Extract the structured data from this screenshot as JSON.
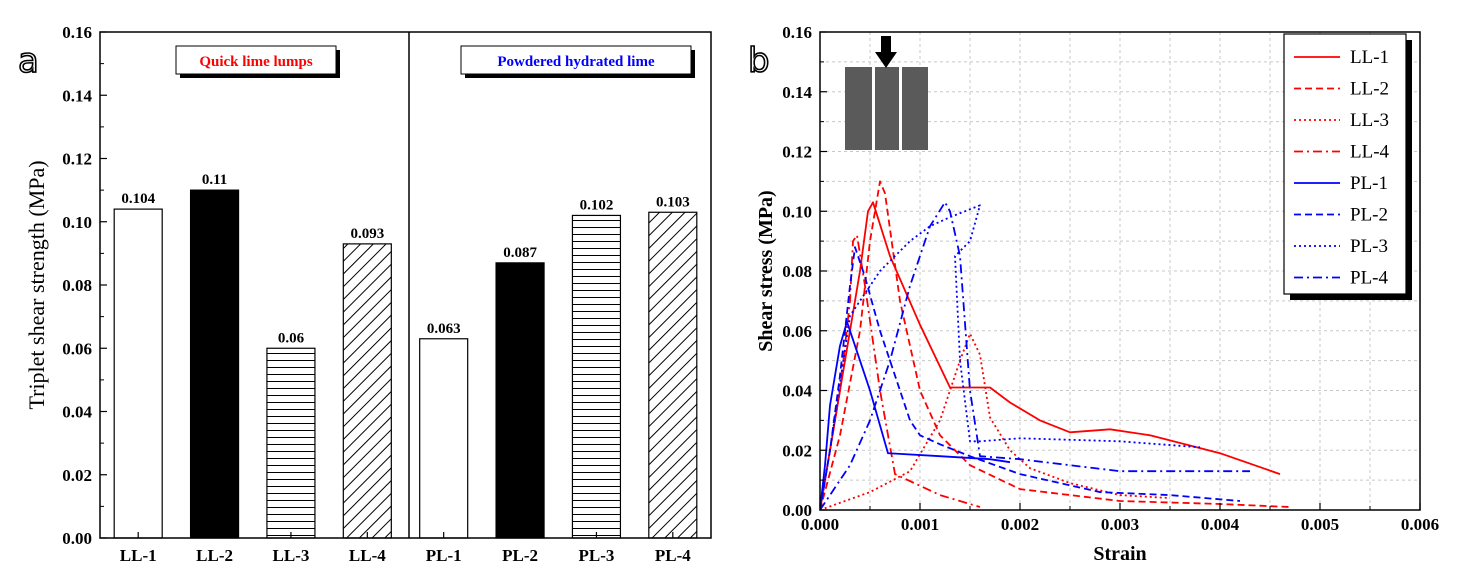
{
  "colors": {
    "red": "#ff0000",
    "blue": "#0000ff",
    "black": "#000000",
    "specimen": "#5a5a5a"
  },
  "chart_data": [
    {
      "panel": "a",
      "type": "bar",
      "ylabel": "Triplet shear strength (MPa)",
      "xlabel": "",
      "ylim": [
        0,
        0.16
      ],
      "yticks": [
        0.0,
        0.02,
        0.04,
        0.06,
        0.08,
        0.1,
        0.12,
        0.14,
        0.16
      ],
      "ytick_labels": [
        "0.00",
        "0.02",
        "0.04",
        "0.06",
        "0.08",
        "0.10",
        "0.12",
        "0.14",
        "0.16"
      ],
      "categories": [
        "LL-1",
        "LL-2",
        "LL-3",
        "LL-4",
        "PL-1",
        "PL-2",
        "PL-3",
        "PL-4"
      ],
      "values": [
        0.104,
        0.11,
        0.06,
        0.093,
        0.063,
        0.087,
        0.102,
        0.103
      ],
      "value_labels": [
        "0.104",
        "0.11",
        "0.06",
        "0.093",
        "0.063",
        "0.087",
        "0.102",
        "0.103"
      ],
      "fills": [
        "white",
        "black",
        "horizontal",
        "diagonal",
        "white",
        "black",
        "horizontal",
        "diagonal"
      ],
      "groups": [
        {
          "label": "Quick lime lumps",
          "color": "#ff0000"
        },
        {
          "label": "Powdered hydrated lime",
          "color": "#0000ff"
        }
      ],
      "grid": false
    },
    {
      "panel": "b",
      "type": "line",
      "xlabel": "Strain",
      "ylabel": "Shear stress (MPa)",
      "xlim": [
        0,
        0.006
      ],
      "ylim": [
        0,
        0.16
      ],
      "xticks": [
        0,
        0.001,
        0.002,
        0.003,
        0.004,
        0.005,
        0.006
      ],
      "xtick_labels": [
        "0.000",
        "0.001",
        "0.002",
        "0.003",
        "0.004",
        "0.005",
        "0.006"
      ],
      "yticks": [
        0.0,
        0.02,
        0.04,
        0.06,
        0.08,
        0.1,
        0.12,
        0.14,
        0.16
      ],
      "ytick_labels": [
        "0.00",
        "0.02",
        "0.04",
        "0.06",
        "0.08",
        "0.10",
        "0.12",
        "0.14",
        "0.16"
      ],
      "grid": true,
      "legend_position": "top-right",
      "series": [
        {
          "name": "LL-1",
          "color": "#ff0000",
          "dash": "solid",
          "x": [
            0,
            0.0001,
            0.0002,
            0.0003,
            0.0004,
            0.00048,
            0.00053,
            0.0007,
            0.001,
            0.0013,
            0.0017,
            0.0019,
            0.0022,
            0.0025,
            0.0029,
            0.0033,
            0.004,
            0.0046
          ],
          "y": [
            0,
            0.02,
            0.04,
            0.06,
            0.08,
            0.1,
            0.103,
            0.085,
            0.062,
            0.041,
            0.041,
            0.036,
            0.03,
            0.026,
            0.027,
            0.025,
            0.019,
            0.012
          ]
        },
        {
          "name": "LL-2",
          "color": "#ff0000",
          "dash": "dash",
          "x": [
            0,
            0.0002,
            0.0004,
            0.0005,
            0.0006,
            0.00065,
            0.0008,
            0.001,
            0.0012,
            0.0015,
            0.002,
            0.003,
            0.004,
            0.0047
          ],
          "y": [
            0,
            0.025,
            0.06,
            0.09,
            0.11,
            0.106,
            0.07,
            0.04,
            0.025,
            0.015,
            0.007,
            0.003,
            0.002,
            0.001
          ]
        },
        {
          "name": "LL-3",
          "color": "#ff0000",
          "dash": "dot",
          "x": [
            0,
            0.0005,
            0.0009,
            0.0012,
            0.0014,
            0.0015,
            0.0016,
            0.0017,
            0.0019,
            0.0021,
            0.0025,
            0.003,
            0.0035
          ],
          "y": [
            0,
            0.006,
            0.013,
            0.03,
            0.05,
            0.059,
            0.052,
            0.031,
            0.02,
            0.014,
            0.009,
            0.005,
            0.004
          ]
        },
        {
          "name": "LL-4",
          "color": "#ff0000",
          "dash": "dashdot",
          "x": [
            0,
            0.0001,
            0.0002,
            0.0003,
            0.00033,
            0.00037,
            0.00045,
            0.0006,
            0.00075,
            0.0012,
            0.0016
          ],
          "y": [
            0,
            0.02,
            0.04,
            0.07,
            0.09,
            0.092,
            0.075,
            0.04,
            0.012,
            0.005,
            0.001
          ]
        },
        {
          "name": "PL-1",
          "color": "#0000ff",
          "dash": "solid",
          "x": [
            0,
            5e-05,
            0.0001,
            0.0002,
            0.00027,
            0.00035,
            0.0005,
            0.00068,
            0.0012,
            0.0017,
            0.0019
          ],
          "y": [
            0,
            0.015,
            0.035,
            0.055,
            0.063,
            0.055,
            0.04,
            0.019,
            0.018,
            0.017,
            0.016
          ]
        },
        {
          "name": "PL-2",
          "color": "#0000ff",
          "dash": "dash",
          "x": [
            0,
            0.0001,
            0.0002,
            0.0003,
            0.00035,
            0.00045,
            0.0006,
            0.0008,
            0.0009,
            0.001,
            0.0012,
            0.0015,
            0.002,
            0.0028,
            0.0035,
            0.0042
          ],
          "y": [
            0,
            0.02,
            0.045,
            0.075,
            0.088,
            0.078,
            0.06,
            0.04,
            0.03,
            0.025,
            0.022,
            0.018,
            0.012,
            0.006,
            0.005,
            0.003
          ]
        },
        {
          "name": "PL-3",
          "color": "#0000ff",
          "dash": "dot",
          "x": [
            0,
            0.0001,
            0.0003,
            0.0006,
            0.0009,
            0.0011,
            0.0013,
            0.0016,
            0.0015,
            0.00135,
            0.0014,
            0.0015,
            0.0016,
            0.002,
            0.003,
            0.0038
          ],
          "y": [
            0,
            0.02,
            0.065,
            0.08,
            0.09,
            0.095,
            0.098,
            0.102,
            0.09,
            0.085,
            0.05,
            0.023,
            0.023,
            0.024,
            0.023,
            0.021
          ]
        },
        {
          "name": "PL-4",
          "color": "#0000ff",
          "dash": "dashdot",
          "x": [
            0,
            0.0003,
            0.0005,
            0.0007,
            0.0009,
            0.0011,
            0.00125,
            0.0013,
            0.0014,
            0.0015,
            0.0016,
            0.002,
            0.0025,
            0.003,
            0.0035,
            0.0043
          ],
          "y": [
            0,
            0.015,
            0.03,
            0.05,
            0.075,
            0.095,
            0.103,
            0.1,
            0.085,
            0.04,
            0.018,
            0.017,
            0.015,
            0.013,
            0.013,
            0.013
          ]
        }
      ]
    }
  ]
}
